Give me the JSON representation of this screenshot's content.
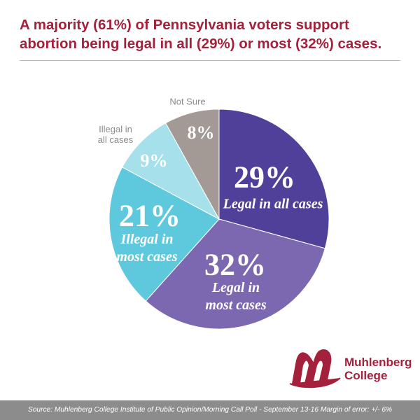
{
  "chart_data": {
    "type": "pie",
    "title": "A majority (61%) of Pennsylvania voters support abortion being legal in all (29%) or most (32%) cases.",
    "categories": [
      "Legal in all cases",
      "Legal in most cases",
      "Illegal in most cases",
      "Illegal in all cases",
      "Not Sure"
    ],
    "values": [
      29,
      32,
      21,
      9,
      8
    ],
    "value_labels": [
      "29%",
      "32%",
      "21%",
      "9%",
      "8%"
    ],
    "colors": [
      "#51409a",
      "#7b68b0",
      "#5ec8dc",
      "#a6e0ea",
      "#a39a95"
    ],
    "source": "Source: Muhlenberg College Institute of Public Opinion/Morning Call Poll - September 13-16  Margin of error: +/- 6%"
  },
  "logo": {
    "text": "Muhlenberg College"
  }
}
